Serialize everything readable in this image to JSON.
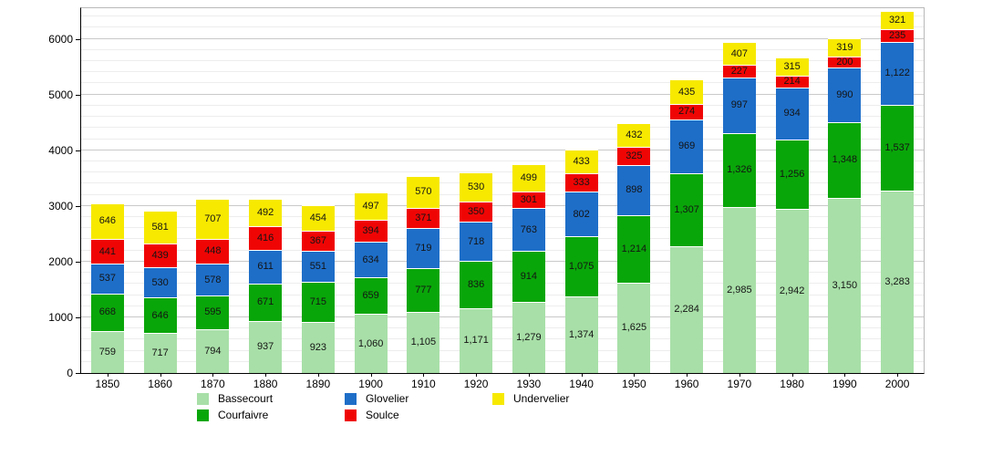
{
  "chart_data": {
    "type": "bar",
    "stacked": true,
    "title": "",
    "xlabel": "",
    "ylabel": "",
    "categories": [
      "1850",
      "1860",
      "1870",
      "1880",
      "1890",
      "1900",
      "1910",
      "1920",
      "1930",
      "1940",
      "1950",
      "1960",
      "1970",
      "1980",
      "1990",
      "2000"
    ],
    "series": [
      {
        "name": "Bassecourt",
        "color": "#a8dfa8",
        "values": [
          759,
          717,
          794,
          937,
          923,
          1060,
          1105,
          1171,
          1279,
          1374,
          1625,
          2284,
          2985,
          2942,
          3150,
          3283
        ]
      },
      {
        "name": "Courfaivre",
        "color": "#09a609",
        "values": [
          668,
          646,
          595,
          671,
          715,
          659,
          777,
          836,
          914,
          1075,
          1214,
          1307,
          1326,
          1256,
          1348,
          1537
        ]
      },
      {
        "name": "Glovelier",
        "color": "#1e6ec8",
        "values": [
          537,
          530,
          578,
          611,
          551,
          634,
          719,
          718,
          763,
          802,
          898,
          969,
          997,
          934,
          990,
          1122
        ]
      },
      {
        "name": "Soulce",
        "color": "#f00505",
        "values": [
          441,
          439,
          448,
          416,
          367,
          394,
          371,
          350,
          301,
          333,
          325,
          274,
          227,
          214,
          200,
          235
        ]
      },
      {
        "name": "Undervelier",
        "color": "#f7e900",
        "values": [
          646,
          581,
          707,
          492,
          454,
          497,
          570,
          530,
          499,
          433,
          432,
          435,
          407,
          315,
          319,
          321
        ]
      }
    ],
    "ylim": [
      0,
      6550
    ],
    "yticks": [
      0,
      1000,
      2000,
      3000,
      4000,
      5000,
      6000
    ],
    "minor_grid_step": 200,
    "grid": true,
    "legend_position": "bottom",
    "legend_columns": [
      [
        "Bassecourt",
        "Courfaivre"
      ],
      [
        "Glovelier",
        "Soulce"
      ],
      [
        "Undervelier"
      ]
    ]
  }
}
